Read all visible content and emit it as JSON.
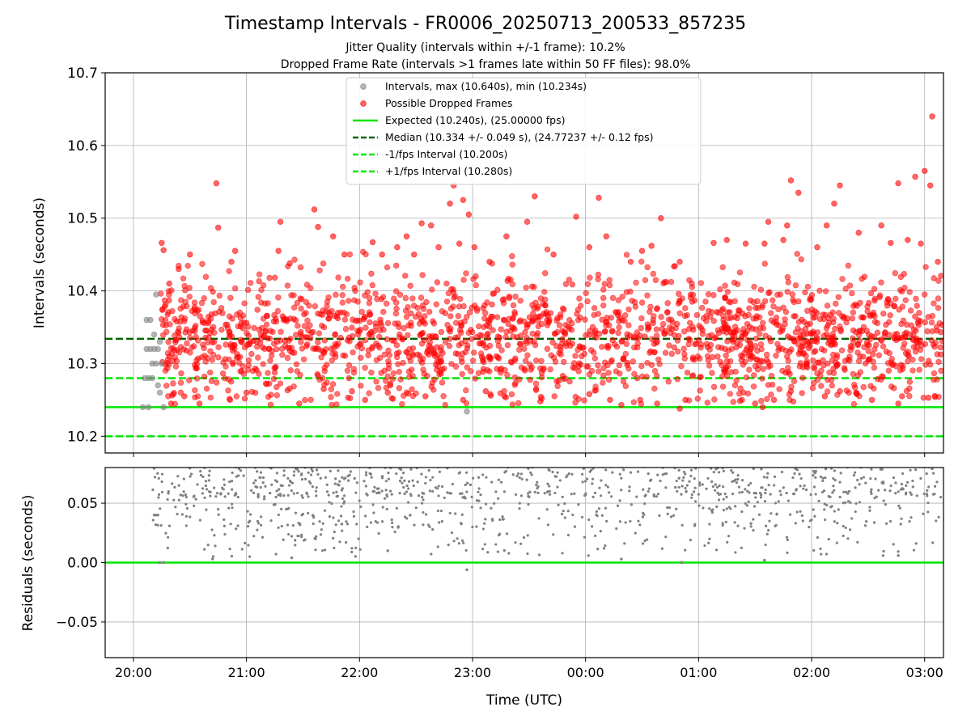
{
  "chart_data": {
    "title": "Timestamp Intervals - FR0006_20250713_200533_857235",
    "subtitle_1": "Jitter Quality (intervals within +/-1 frame): 10.2%",
    "subtitle_2": "Dropped Frame Rate (intervals >1 frames late within 50 FF files): 98.0%",
    "xlabel": "Time (UTC)",
    "x_ticks": [
      "20:00",
      "21:00",
      "22:00",
      "23:00",
      "00:00",
      "01:00",
      "02:00",
      "03:00"
    ],
    "x_range": [
      "2025-07-13T19:45",
      "2025-07-14T03:10"
    ],
    "grid": true,
    "panels": [
      {
        "id": "intervals",
        "type": "scatter",
        "ylabel": "Intervals (seconds)",
        "ylim": [
          10.177,
          10.7
        ],
        "y_ticks": [
          "10.2",
          "10.3",
          "10.4",
          "10.5",
          "10.6",
          "10.7"
        ],
        "legend_position": "top-center",
        "legend": [
          {
            "label": "Intervals, max (10.640s), min (10.234s)",
            "kind": "marker",
            "color": "#808080"
          },
          {
            "label": "Possible Dropped Frames",
            "kind": "marker",
            "color": "#ff0000"
          },
          {
            "label": "Expected (10.240s), (25.00000 fps)",
            "kind": "line",
            "color": "#00e600"
          },
          {
            "label": "Median (10.334 +/- 0.049 s), (24.77237 +/- 0.12 fps)",
            "kind": "dashed",
            "color": "#006400"
          },
          {
            "label": "-1/fps Interval (10.200s)",
            "kind": "dashed",
            "color": "#00e600"
          },
          {
            "label": "+1/fps Interval (10.280s)",
            "kind": "dashed",
            "color": "#00e600"
          }
        ],
        "reference_lines": [
          {
            "y": 10.24,
            "style": "solid",
            "color": "#00e600"
          },
          {
            "y": 10.334,
            "style": "dashed",
            "color": "#006400"
          },
          {
            "y": 10.2,
            "style": "dashed",
            "color": "#00e600"
          },
          {
            "y": 10.28,
            "style": "dashed",
            "color": "#00e600"
          }
        ],
        "series": [
          {
            "kind": "normal",
            "color": "#808080",
            "points": [
              [
                "2025-07-13T20:05",
                10.24
              ],
              [
                "2025-07-13T20:06",
                10.28
              ],
              [
                "2025-07-13T20:07",
                10.32
              ],
              [
                "2025-07-13T20:07",
                10.36
              ],
              [
                "2025-07-13T20:08",
                10.28
              ],
              [
                "2025-07-13T20:08",
                10.24
              ],
              [
                "2025-07-13T20:09",
                10.32
              ],
              [
                "2025-07-13T20:09",
                10.36
              ],
              [
                "2025-07-13T20:10",
                10.3
              ],
              [
                "2025-07-13T20:10",
                10.28
              ],
              [
                "2025-07-13T20:11",
                10.32
              ],
              [
                "2025-07-13T20:11",
                10.34
              ],
              [
                "2025-07-13T20:12",
                10.3
              ],
              [
                "2025-07-13T20:12",
                10.395
              ],
              [
                "2025-07-13T20:13",
                10.32
              ],
              [
                "2025-07-13T20:13",
                10.27
              ],
              [
                "2025-07-13T20:14",
                10.26
              ],
              [
                "2025-07-13T20:14",
                10.33
              ],
              [
                "2025-07-13T20:15",
                10.3
              ],
              [
                "2025-07-13T20:16",
                10.24
              ],
              [
                "2025-07-13T22:57",
                10.234
              ]
            ]
          },
          {
            "kind": "dropped",
            "color": "#ff0000",
            "points": [
              [
                "2025-07-13T20:15",
                10.466
              ],
              [
                "2025-07-13T20:16",
                10.456
              ],
              [
                "2025-07-13T20:19",
                10.41
              ],
              [
                "2025-07-13T20:24",
                10.43
              ],
              [
                "2025-07-13T20:30",
                10.45
              ],
              [
                "2025-07-13T20:44",
                10.548
              ],
              [
                "2025-07-13T20:45",
                10.487
              ],
              [
                "2025-07-13T20:52",
                10.44
              ],
              [
                "2025-07-13T20:54",
                10.455
              ],
              [
                "2025-07-13T21:17",
                10.455
              ],
              [
                "2025-07-13T21:18",
                10.495
              ],
              [
                "2025-07-13T21:23",
                10.438
              ],
              [
                "2025-07-13T21:36",
                10.512
              ],
              [
                "2025-07-13T21:38",
                10.488
              ],
              [
                "2025-07-13T21:46",
                10.475
              ],
              [
                "2025-07-13T21:52",
                10.45
              ],
              [
                "2025-07-13T22:07",
                10.467
              ],
              [
                "2025-07-13T22:12",
                10.45
              ],
              [
                "2025-07-13T22:20",
                10.46
              ],
              [
                "2025-07-13T22:25",
                10.475
              ],
              [
                "2025-07-13T22:29",
                10.45
              ],
              [
                "2025-07-13T22:33",
                10.493
              ],
              [
                "2025-07-13T22:38",
                10.49
              ],
              [
                "2025-07-13T22:42",
                10.46
              ],
              [
                "2025-07-13T22:48",
                10.52
              ],
              [
                "2025-07-13T22:50",
                10.545
              ],
              [
                "2025-07-13T22:53",
                10.465
              ],
              [
                "2025-07-13T22:55",
                10.525
              ],
              [
                "2025-07-13T22:58",
                10.505
              ],
              [
                "2025-07-13T23:01",
                10.46
              ],
              [
                "2025-07-13T23:09",
                10.44
              ],
              [
                "2025-07-13T23:18",
                10.475
              ],
              [
                "2025-07-13T23:29",
                10.495
              ],
              [
                "2025-07-13T23:33",
                10.53
              ],
              [
                "2025-07-13T23:43",
                10.45
              ],
              [
                "2025-07-13T23:55",
                10.502
              ],
              [
                "2025-07-14T00:02",
                10.46
              ],
              [
                "2025-07-14T00:07",
                10.528
              ],
              [
                "2025-07-14T00:11",
                10.475
              ],
              [
                "2025-07-14T00:24",
                10.44
              ],
              [
                "2025-07-14T00:30",
                10.455
              ],
              [
                "2025-07-14T00:35",
                10.462
              ],
              [
                "2025-07-14T00:40",
                10.5
              ],
              [
                "2025-07-14T00:50",
                10.44
              ],
              [
                "2025-07-14T01:08",
                10.466
              ],
              [
                "2025-07-14T01:15",
                10.47
              ],
              [
                "2025-07-14T01:25",
                10.465
              ],
              [
                "2025-07-14T01:35",
                10.465
              ],
              [
                "2025-07-14T01:37",
                10.495
              ],
              [
                "2025-07-14T01:45",
                10.47
              ],
              [
                "2025-07-14T01:47",
                10.49
              ],
              [
                "2025-07-14T01:49",
                10.552
              ],
              [
                "2025-07-14T01:53",
                10.535
              ],
              [
                "2025-07-14T02:03",
                10.46
              ],
              [
                "2025-07-14T02:08",
                10.49
              ],
              [
                "2025-07-14T02:12",
                10.52
              ],
              [
                "2025-07-14T02:15",
                10.545
              ],
              [
                "2025-07-14T02:25",
                10.48
              ],
              [
                "2025-07-14T02:37",
                10.49
              ],
              [
                "2025-07-14T02:42",
                10.466
              ],
              [
                "2025-07-14T02:46",
                10.548
              ],
              [
                "2025-07-14T02:51",
                10.47
              ],
              [
                "2025-07-14T02:55",
                10.557
              ],
              [
                "2025-07-14T02:58",
                10.465
              ],
              [
                "2025-07-14T03:00",
                10.565
              ],
              [
                "2025-07-14T03:03",
                10.545
              ],
              [
                "2025-07-14T03:04",
                10.64
              ],
              [
                "2025-07-14T03:07",
                10.44
              ],
              [
                "2025-07-13T20:20",
                10.245
              ],
              [
                "2025-07-13T20:27",
                10.255
              ],
              [
                "2025-07-13T20:35",
                10.245
              ],
              [
                "2025-07-13T21:00",
                10.26
              ],
              [
                "2025-07-13T21:28",
                10.245
              ],
              [
                "2025-07-13T21:41",
                10.265
              ],
              [
                "2025-07-13T21:56",
                10.262
              ],
              [
                "2025-07-13T22:03",
                10.25
              ],
              [
                "2025-07-13T22:15",
                10.26
              ],
              [
                "2025-07-13T22:35",
                10.255
              ],
              [
                "2025-07-13T22:55",
                10.25
              ],
              [
                "2025-07-13T23:07",
                10.262
              ],
              [
                "2025-07-13T23:17",
                10.255
              ],
              [
                "2025-07-13T23:36",
                10.248
              ],
              [
                "2025-07-14T00:02",
                10.258
              ],
              [
                "2025-07-14T00:13",
                10.25
              ],
              [
                "2025-07-14T00:19",
                10.243
              ],
              [
                "2025-07-14T00:29",
                10.25
              ],
              [
                "2025-07-14T00:38",
                10.245
              ],
              [
                "2025-07-14T00:50",
                10.238
              ],
              [
                "2025-07-14T00:53",
                10.25
              ],
              [
                "2025-07-14T01:23",
                10.25
              ],
              [
                "2025-07-14T01:30",
                10.245
              ],
              [
                "2025-07-14T01:34",
                10.24
              ],
              [
                "2025-07-14T01:40",
                10.25
              ],
              [
                "2025-07-14T01:49",
                10.262
              ],
              [
                "2025-07-14T02:07",
                10.255
              ],
              [
                "2025-07-14T02:15",
                10.262
              ],
              [
                "2025-07-14T02:24",
                10.258
              ],
              [
                "2025-07-14T02:32",
                10.25
              ],
              [
                "2025-07-14T02:46",
                10.245
              ],
              [
                "2025-07-14T02:48",
                10.255
              ],
              [
                "2025-07-14T03:02",
                10.253
              ]
            ]
          }
        ]
      },
      {
        "id": "residuals",
        "type": "scatter",
        "ylabel": "Residuals (seconds)",
        "ylim": [
          -0.08,
          0.08
        ],
        "y_ticks": [
          "−0.05",
          "0.00",
          "0.05"
        ],
        "reference_lines": [
          {
            "y": 0.0,
            "style": "solid",
            "color": "#00e600"
          }
        ],
        "series": [
          {
            "kind": "residual",
            "color": "#808080",
            "points": [
              [
                "2025-07-13T20:11",
                0.04
              ],
              [
                "2025-07-13T20:12",
                0.04
              ],
              [
                "2025-07-13T20:13",
                0.04
              ],
              [
                "2025-07-13T20:14",
                0.0
              ],
              [
                "2025-07-13T20:16",
                0.0
              ],
              [
                "2025-07-13T22:57",
                -0.006
              ],
              [
                "2025-07-13T20:42",
                0.003
              ],
              [
                "2025-07-13T21:24",
                0.004
              ],
              [
                "2025-07-13T22:15",
                0.01
              ],
              [
                "2025-07-14T00:19",
                0.003
              ],
              [
                "2025-07-14T00:51",
                0.0
              ],
              [
                "2025-07-14T01:35",
                0.002
              ],
              [
                "2025-07-14T02:46",
                0.006
              ],
              [
                "2025-07-14T03:04",
                0.079
              ]
            ]
          }
        ]
      }
    ]
  }
}
